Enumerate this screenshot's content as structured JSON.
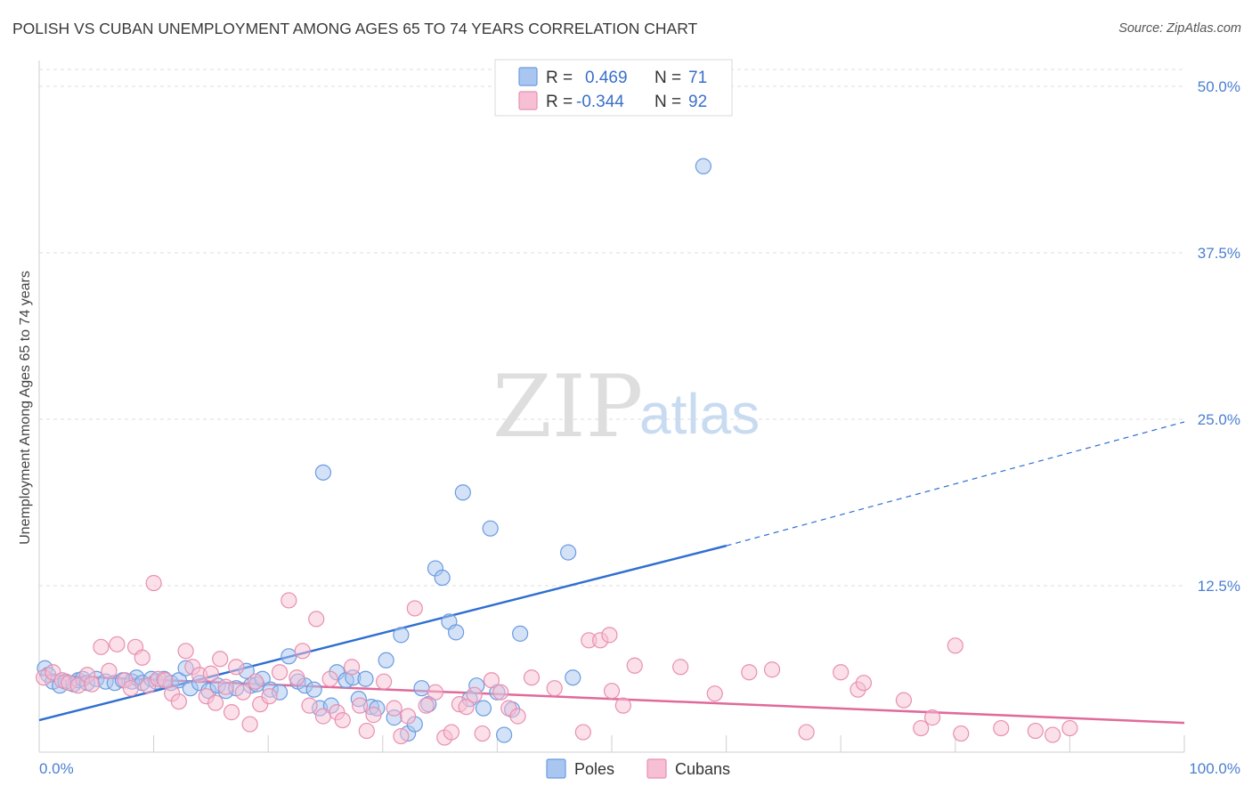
{
  "title": "POLISH VS CUBAN UNEMPLOYMENT AMONG AGES 65 TO 74 YEARS CORRELATION CHART",
  "source": "Source: ZipAtlas.com",
  "watermark": {
    "zip": "ZIP",
    "atlas": "atlas"
  },
  "legend": {
    "rows": [
      {
        "r_label": "R =",
        "r_value": "0.469",
        "n_label": "N =",
        "n_value": "71",
        "color": "#a9c6f0",
        "stroke": "#6b9be0"
      },
      {
        "r_label": "R =",
        "r_value": "-0.344",
        "n_label": "N =",
        "n_value": "92",
        "color": "#f7bfd3",
        "stroke": "#e890b0"
      }
    ]
  },
  "bottom_legend": [
    {
      "label": "Poles",
      "color": "#a9c6f0",
      "stroke": "#6b9be0"
    },
    {
      "label": "Cubans",
      "color": "#f7bfd3",
      "stroke": "#e890b0"
    }
  ],
  "chart_data": {
    "type": "scatter",
    "title": "POLISH VS CUBAN UNEMPLOYMENT AMONG AGES 65 TO 74 YEARS CORRELATION CHART",
    "xlabel": "",
    "ylabel": "Unemployment Among Ages 65 to 74 years",
    "xlim": [
      0,
      100
    ],
    "ylim": [
      0,
      50
    ],
    "x_tick_labels": [
      "0.0%",
      "100.0%"
    ],
    "y_ticks": [
      12.5,
      25.0,
      37.5,
      50.0
    ],
    "y_tick_labels": [
      "12.5%",
      "25.0%",
      "37.5%",
      "50.0%"
    ],
    "grid": true,
    "series": [
      {
        "name": "Poles",
        "color": "#6b9be0",
        "fill": "#a9c6f0",
        "trend": {
          "x0": 0,
          "y0": 2.4,
          "x1": 60,
          "y1": 15.5,
          "dash_to_x": 100,
          "dash_to_y": 24.8,
          "color": "#2f6fd1"
        },
        "points": [
          [
            0.5,
            6.3
          ],
          [
            0.8,
            5.8
          ],
          [
            1.2,
            5.3
          ],
          [
            1.8,
            5.0
          ],
          [
            2.3,
            5.3
          ],
          [
            3.0,
            5.1
          ],
          [
            3.4,
            5.4
          ],
          [
            3.8,
            5.5
          ],
          [
            4.2,
            5.2
          ],
          [
            5.0,
            5.5
          ],
          [
            5.8,
            5.3
          ],
          [
            6.6,
            5.2
          ],
          [
            7.3,
            5.4
          ],
          [
            8.1,
            5.3
          ],
          [
            8.5,
            5.6
          ],
          [
            9.0,
            5.2
          ],
          [
            9.8,
            5.5
          ],
          [
            10.2,
            5.3
          ],
          [
            10.9,
            5.5
          ],
          [
            11.5,
            5.2
          ],
          [
            12.2,
            5.4
          ],
          [
            12.8,
            6.3
          ],
          [
            13.2,
            4.8
          ],
          [
            14.0,
            5.2
          ],
          [
            14.8,
            4.6
          ],
          [
            15.6,
            5.0
          ],
          [
            16.3,
            4.6
          ],
          [
            17.2,
            4.8
          ],
          [
            18.1,
            6.1
          ],
          [
            18.5,
            5.0
          ],
          [
            19.0,
            5.1
          ],
          [
            19.5,
            5.5
          ],
          [
            20.2,
            4.7
          ],
          [
            21.0,
            4.5
          ],
          [
            21.8,
            7.2
          ],
          [
            22.6,
            5.3
          ],
          [
            23.2,
            5.0
          ],
          [
            24.0,
            4.7
          ],
          [
            24.5,
            3.3
          ],
          [
            24.8,
            21.0
          ],
          [
            25.5,
            3.5
          ],
          [
            26.0,
            6.0
          ],
          [
            26.8,
            5.4
          ],
          [
            27.4,
            5.6
          ],
          [
            27.9,
            4.0
          ],
          [
            28.5,
            5.5
          ],
          [
            29.0,
            3.4
          ],
          [
            29.5,
            3.3
          ],
          [
            30.3,
            6.9
          ],
          [
            31.0,
            2.6
          ],
          [
            31.6,
            8.8
          ],
          [
            32.2,
            1.4
          ],
          [
            32.8,
            2.1
          ],
          [
            33.4,
            4.8
          ],
          [
            34.0,
            3.6
          ],
          [
            34.6,
            13.8
          ],
          [
            35.2,
            13.1
          ],
          [
            35.8,
            9.8
          ],
          [
            36.4,
            9.0
          ],
          [
            37.0,
            19.5
          ],
          [
            37.6,
            4.0
          ],
          [
            38.2,
            5.0
          ],
          [
            38.8,
            3.3
          ],
          [
            39.4,
            16.8
          ],
          [
            40.0,
            4.5
          ],
          [
            40.6,
            1.3
          ],
          [
            41.3,
            3.2
          ],
          [
            42.0,
            8.9
          ],
          [
            46.2,
            15.0
          ],
          [
            46.6,
            5.6
          ],
          [
            58.0,
            44.0
          ]
        ]
      },
      {
        "name": "Cubans",
        "color": "#e890b0",
        "fill": "#f7bfd3",
        "trend": {
          "x0": 0,
          "y0": 5.8,
          "x1": 100,
          "y1": 2.2,
          "color": "#e06a98"
        },
        "points": [
          [
            0.4,
            5.6
          ],
          [
            1.2,
            6.0
          ],
          [
            2.0,
            5.4
          ],
          [
            2.6,
            5.2
          ],
          [
            3.4,
            5.0
          ],
          [
            4.2,
            5.8
          ],
          [
            4.6,
            5.1
          ],
          [
            5.4,
            7.9
          ],
          [
            6.1,
            6.1
          ],
          [
            6.8,
            8.1
          ],
          [
            7.5,
            5.4
          ],
          [
            8.0,
            4.8
          ],
          [
            8.4,
            7.9
          ],
          [
            9.0,
            7.1
          ],
          [
            9.5,
            5.0
          ],
          [
            10.0,
            12.7
          ],
          [
            10.4,
            5.5
          ],
          [
            11.0,
            5.4
          ],
          [
            11.6,
            4.4
          ],
          [
            12.2,
            3.8
          ],
          [
            12.8,
            7.6
          ],
          [
            13.4,
            6.4
          ],
          [
            14.0,
            5.8
          ],
          [
            14.6,
            4.2
          ],
          [
            15.0,
            5.9
          ],
          [
            15.4,
            3.7
          ],
          [
            15.8,
            7.0
          ],
          [
            16.3,
            4.9
          ],
          [
            16.8,
            3.0
          ],
          [
            17.2,
            6.4
          ],
          [
            17.8,
            4.5
          ],
          [
            18.4,
            2.1
          ],
          [
            18.9,
            5.3
          ],
          [
            19.3,
            3.6
          ],
          [
            20.1,
            4.2
          ],
          [
            21.0,
            6.0
          ],
          [
            21.8,
            11.4
          ],
          [
            22.5,
            5.6
          ],
          [
            23.0,
            7.6
          ],
          [
            23.6,
            3.5
          ],
          [
            24.2,
            10.0
          ],
          [
            24.8,
            2.7
          ],
          [
            25.4,
            5.5
          ],
          [
            26.0,
            3.0
          ],
          [
            26.5,
            2.4
          ],
          [
            27.3,
            6.4
          ],
          [
            28.0,
            3.5
          ],
          [
            28.6,
            1.6
          ],
          [
            29.2,
            2.8
          ],
          [
            30.1,
            5.3
          ],
          [
            31.0,
            3.3
          ],
          [
            31.6,
            1.2
          ],
          [
            32.2,
            2.7
          ],
          [
            32.8,
            10.8
          ],
          [
            33.8,
            3.5
          ],
          [
            34.6,
            4.5
          ],
          [
            35.4,
            1.1
          ],
          [
            36.0,
            1.5
          ],
          [
            36.7,
            3.6
          ],
          [
            37.3,
            3.4
          ],
          [
            38.0,
            4.3
          ],
          [
            38.7,
            1.4
          ],
          [
            39.5,
            5.4
          ],
          [
            40.3,
            4.5
          ],
          [
            41.0,
            3.3
          ],
          [
            41.8,
            2.7
          ],
          [
            43.0,
            5.6
          ],
          [
            45.0,
            4.8
          ],
          [
            47.5,
            1.5
          ],
          [
            48.0,
            8.4
          ],
          [
            49.0,
            8.4
          ],
          [
            49.8,
            8.8
          ],
          [
            50.0,
            4.6
          ],
          [
            51.0,
            3.5
          ],
          [
            52.0,
            6.5
          ],
          [
            56.0,
            6.4
          ],
          [
            59.0,
            4.4
          ],
          [
            62.0,
            6.0
          ],
          [
            64.0,
            6.2
          ],
          [
            67.0,
            1.5
          ],
          [
            70.0,
            6.0
          ],
          [
            71.5,
            4.7
          ],
          [
            72.0,
            5.2
          ],
          [
            75.5,
            3.9
          ],
          [
            77.0,
            1.8
          ],
          [
            78.0,
            2.6
          ],
          [
            80.0,
            8.0
          ],
          [
            80.5,
            1.4
          ],
          [
            84.0,
            1.8
          ],
          [
            87.0,
            1.6
          ],
          [
            88.5,
            1.3
          ],
          [
            90.0,
            1.8
          ]
        ]
      }
    ]
  }
}
